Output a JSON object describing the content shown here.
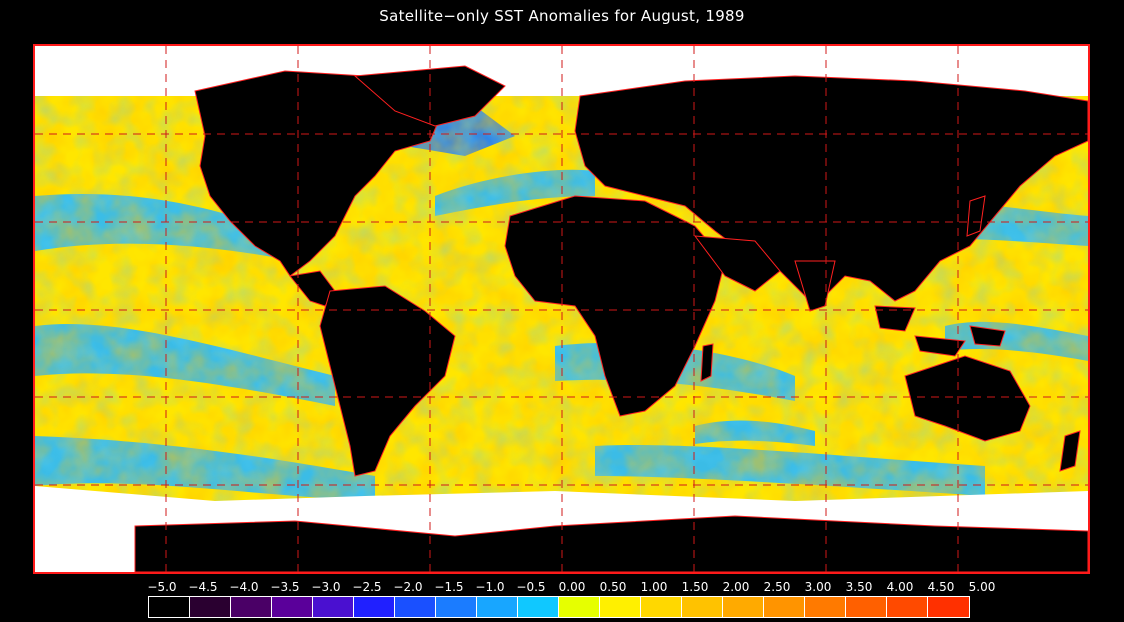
{
  "title": "Satellite−only SST Anomalies for August, 1989",
  "map": {
    "land_color": "#000000",
    "ice_color": "#ffffff",
    "border_color": "#ff2020",
    "grid_color": "#cc1010"
  },
  "color_scale": {
    "tick_labels": [
      "−5.0",
      "−4.5",
      "−4.0",
      "−3.5",
      "−3.0",
      "−2.5",
      "−2.0",
      "−1.5",
      "−1.0",
      "−0.5",
      "0.00",
      "0.50",
      "1.00",
      "1.50",
      "2.00",
      "2.50",
      "3.00",
      "3.50",
      "4.00",
      "4.50",
      "5.00"
    ],
    "colors": [
      "#000000",
      "#2a0030",
      "#4a0066",
      "#5a009a",
      "#4a10d0",
      "#2020ff",
      "#1a50ff",
      "#1b7cff",
      "#18a6ff",
      "#10c8ff",
      "#e6ff00",
      "#fff000",
      "#ffd800",
      "#ffc200",
      "#ffaa00",
      "#ff9400",
      "#ff7a00",
      "#ff6000",
      "#ff4a00",
      "#ff3000"
    ]
  }
}
